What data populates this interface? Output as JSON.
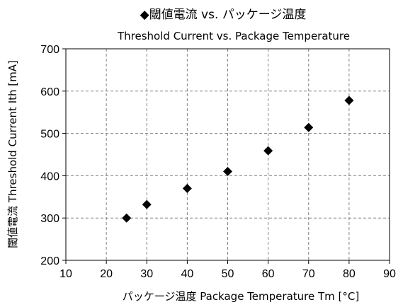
{
  "chart_data": {
    "type": "scatter",
    "title": "◆閾値電流 vs. パッケージ温度",
    "subtitle": "Threshold Current vs. Package Temperature",
    "xlabel": "パッケージ温度   Package Temperature  Tm [°C]",
    "ylabel": "閾値電流   Threshold Current  Ith [mA]",
    "xlim": [
      10,
      90
    ],
    "ylim": [
      200,
      700
    ],
    "xticks": [
      10,
      20,
      30,
      40,
      50,
      60,
      70,
      80,
      90
    ],
    "yticks": [
      200,
      300,
      400,
      500,
      600,
      700
    ],
    "grid": true,
    "marker": "diamond",
    "marker_color": "#000000",
    "x": [
      25,
      30,
      40,
      50,
      60,
      70,
      80
    ],
    "y": [
      300,
      332,
      370,
      410,
      459,
      514,
      578
    ]
  }
}
